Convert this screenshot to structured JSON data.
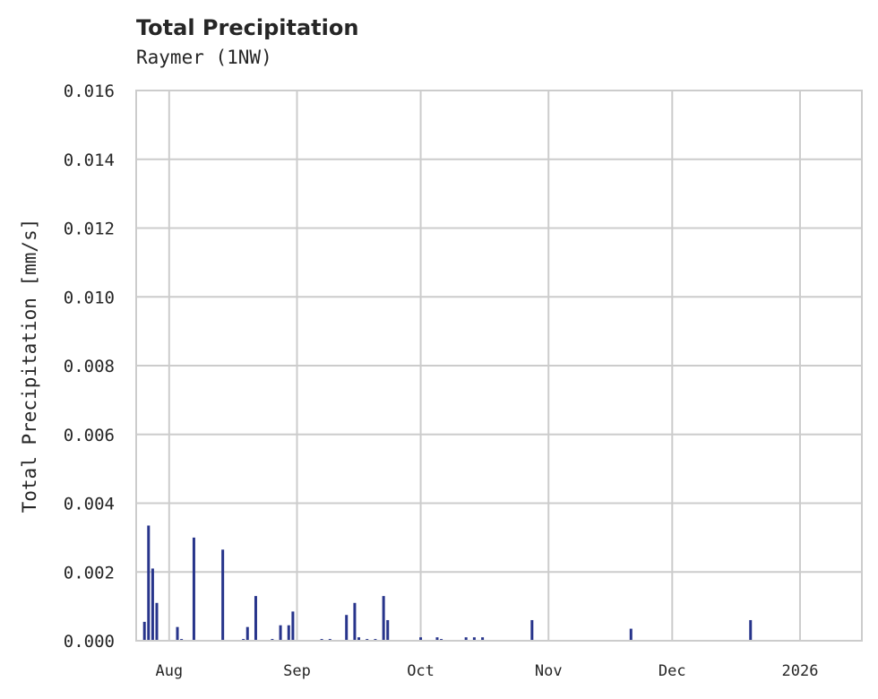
{
  "chart_data": {
    "type": "bar",
    "title": "Total Precipitation",
    "subtitle": "Raymer (1NW)",
    "xlabel": "",
    "ylabel": "Total Precipitation [mm/s]",
    "ylim": [
      0.0,
      0.016
    ],
    "yticks": [
      "0.000",
      "0.002",
      "0.004",
      "0.006",
      "0.008",
      "0.010",
      "0.012",
      "0.014",
      "0.016"
    ],
    "xticks": [
      "Aug",
      "Sep",
      "Oct",
      "Nov",
      "Dec",
      "2026"
    ],
    "grid": true,
    "legend": null,
    "color": "#27348b",
    "x_date_range": [
      "2025-07-24",
      "2026-01-16"
    ],
    "series": [
      {
        "name": "Total Precipitation",
        "points": [
          {
            "date": "2025-07-26",
            "value": 0.00055
          },
          {
            "date": "2025-07-27",
            "value": 0.00335
          },
          {
            "date": "2025-07-28",
            "value": 0.0021
          },
          {
            "date": "2025-07-29",
            "value": 0.0011
          },
          {
            "date": "2025-08-03",
            "value": 0.0004
          },
          {
            "date": "2025-08-04",
            "value": 5e-05
          },
          {
            "date": "2025-08-07",
            "value": 0.003
          },
          {
            "date": "2025-08-14",
            "value": 0.00265
          },
          {
            "date": "2025-08-19",
            "value": 5e-05
          },
          {
            "date": "2025-08-20",
            "value": 0.0004
          },
          {
            "date": "2025-08-22",
            "value": 0.0013
          },
          {
            "date": "2025-08-26",
            "value": 5e-05
          },
          {
            "date": "2025-08-28",
            "value": 0.00045
          },
          {
            "date": "2025-08-30",
            "value": 0.00045
          },
          {
            "date": "2025-08-31",
            "value": 0.00085
          },
          {
            "date": "2025-09-07",
            "value": 5e-05
          },
          {
            "date": "2025-09-09",
            "value": 5e-05
          },
          {
            "date": "2025-09-13",
            "value": 0.00075
          },
          {
            "date": "2025-09-15",
            "value": 0.0011
          },
          {
            "date": "2025-09-16",
            "value": 0.0001
          },
          {
            "date": "2025-09-18",
            "value": 5e-05
          },
          {
            "date": "2025-09-20",
            "value": 5e-05
          },
          {
            "date": "2025-09-22",
            "value": 0.0013
          },
          {
            "date": "2025-09-23",
            "value": 0.0006
          },
          {
            "date": "2025-10-01",
            "value": 0.0001
          },
          {
            "date": "2025-10-05",
            "value": 0.0001
          },
          {
            "date": "2025-10-06",
            "value": 5e-05
          },
          {
            "date": "2025-10-12",
            "value": 0.0001
          },
          {
            "date": "2025-10-14",
            "value": 0.0001
          },
          {
            "date": "2025-10-16",
            "value": 0.0001
          },
          {
            "date": "2025-10-28",
            "value": 0.0006
          },
          {
            "date": "2025-11-21",
            "value": 0.00035
          },
          {
            "date": "2025-12-20",
            "value": 0.0006
          }
        ]
      }
    ]
  }
}
